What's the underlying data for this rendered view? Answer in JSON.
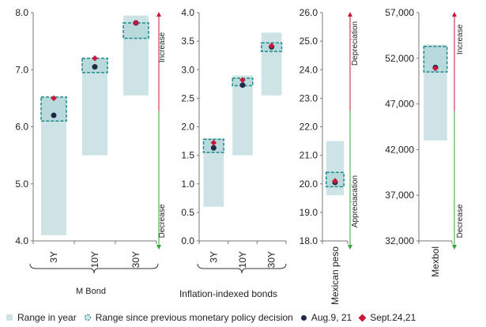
{
  "chart_data": [
    {
      "type": "range",
      "group_label": "M Bond",
      "categories": [
        "3Y",
        "10Y",
        "30Y"
      ],
      "ylim": [
        4.0,
        8.0
      ],
      "yticks": [
        "4.0",
        "5.0",
        "6.0",
        "7.0",
        "8.0"
      ],
      "ticks_values": [
        4,
        5,
        6,
        7,
        8
      ],
      "range_in_year": [
        [
          4.1,
          6.5
        ],
        [
          5.5,
          7.2
        ],
        [
          6.55,
          7.95
        ]
      ],
      "range_since_mp": [
        [
          6.1,
          6.52
        ],
        [
          6.95,
          7.2
        ],
        [
          7.55,
          7.82
        ]
      ],
      "aug": [
        6.2,
        7.05,
        7.82
      ],
      "sept": [
        6.5,
        7.2,
        7.82
      ],
      "arrow_top": "Increase",
      "arrow_bottom": "Decrease"
    },
    {
      "type": "range",
      "group_label": "Inflation-indexed bonds",
      "categories": [
        "3Y",
        "10Y",
        "30Y"
      ],
      "ylim": [
        0.0,
        4.0
      ],
      "yticks": [
        "0.0",
        "0.5",
        "1.0",
        "1.5",
        "2.0",
        "2.5",
        "3.0",
        "3.5",
        "4.0"
      ],
      "ticks_values": [
        0,
        0.5,
        1,
        1.5,
        2,
        2.5,
        3,
        3.5,
        4
      ],
      "range_in_year": [
        [
          0.6,
          1.8
        ],
        [
          1.5,
          2.9
        ],
        [
          2.55,
          3.65
        ]
      ],
      "range_since_mp": [
        [
          1.55,
          1.78
        ],
        [
          2.72,
          2.85
        ],
        [
          3.32,
          3.47
        ]
      ],
      "aug": [
        1.63,
        2.73,
        3.4
      ],
      "sept": [
        1.72,
        2.82,
        3.42
      ]
    },
    {
      "type": "range",
      "categories": [
        "Mexican peso"
      ],
      "ylim": [
        18.0,
        26.0
      ],
      "yticks": [
        "18.0",
        "19.0",
        "20.0",
        "21.0",
        "22.0",
        "23.0",
        "24.0",
        "25.0",
        "26.0"
      ],
      "ticks_values": [
        18,
        19,
        20,
        21,
        22,
        23,
        24,
        25,
        26
      ],
      "range_in_year": [
        [
          19.6,
          21.5
        ]
      ],
      "range_since_mp": [
        [
          19.9,
          20.4
        ]
      ],
      "aug": [
        20.05
      ],
      "sept": [
        20.1
      ],
      "arrow_top": "Depreciation",
      "arrow_bottom": "Appreciacation"
    },
    {
      "type": "range",
      "categories": [
        "Mexbol"
      ],
      "ylim": [
        32000,
        57000
      ],
      "yticks": [
        "32,000",
        "37,000",
        "42,000",
        "47,000",
        "52,000",
        "57,000"
      ],
      "ticks_values": [
        32000,
        37000,
        42000,
        47000,
        52000,
        57000
      ],
      "range_in_year": [
        [
          43000,
          53500
        ]
      ],
      "range_since_mp": [
        [
          50500,
          53300
        ]
      ],
      "aug": [
        51000
      ],
      "sept": [
        50900
      ],
      "arrow_top": "Increase",
      "arrow_bottom": "Decrease"
    }
  ],
  "legend": {
    "range_in_year": "Range in year",
    "range_since_mp": "Range since previous monetary policy decision",
    "aug": "Aug.9, 21",
    "sept": "Sept.24,21"
  },
  "colors": {
    "range_fill": "#cde3e6",
    "range_mp_border": "#1f8a8a",
    "aug_dot": "#1f2a44",
    "sept_diamond": "#c8193c",
    "arrow_up": "#c8193c",
    "arrow_down": "#3aa03a"
  }
}
